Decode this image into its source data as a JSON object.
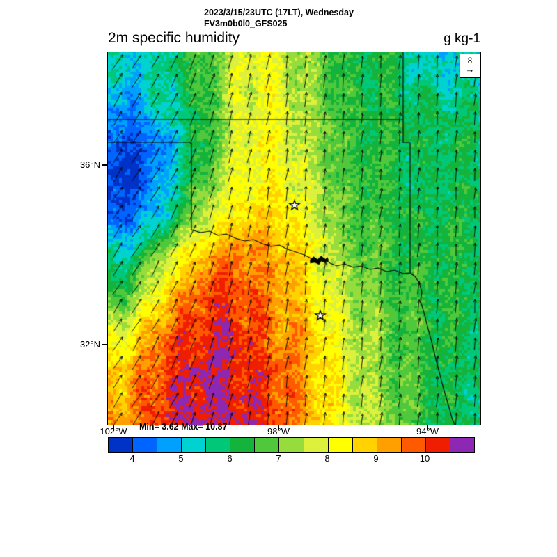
{
  "header": {
    "line1": "2023/3/15/23UTC (17LT), Wednesday",
    "line2": "FV3m0b0l0_GFS025"
  },
  "plot": {
    "variable": "2m specific humidity",
    "units": "g kg-1",
    "minmax": "Min= 3.62 Max= 10.87"
  },
  "axes": {
    "lat_labels": [
      {
        "label": "36°N"
      },
      {
        "label": "32°N"
      }
    ],
    "lon_labels": [
      {
        "label": "102°W"
      },
      {
        "label": "98°W"
      },
      {
        "label": "94°W"
      }
    ]
  },
  "reference_vector": {
    "value": "8"
  },
  "chart_data": {
    "type": "heatmap",
    "title": "2m specific humidity",
    "subtitle1": "2023/3/15/23UTC (17LT), Wednesday",
    "subtitle2": "FV3m0b0l0_GFS025",
    "units": "g kg-1",
    "min": 3.62,
    "max": 10.87,
    "lat_range": [
      30.2,
      38.5
    ],
    "lon_range": [
      -102.1,
      -92.7
    ],
    "lat_ticks": [
      {
        "value": 36,
        "label": "36°N"
      },
      {
        "value": 32,
        "label": "32°N"
      }
    ],
    "lon_ticks": [
      {
        "value": -102,
        "label": "102°W"
      },
      {
        "value": -98,
        "label": "98°W"
      },
      {
        "value": -94,
        "label": "94°W"
      }
    ],
    "levels": [
      3.5,
      4,
      4.5,
      5,
      5.5,
      6,
      6.5,
      7,
      7.5,
      8,
      8.5,
      9,
      9.5,
      10,
      10.5,
      11
    ],
    "palette": [
      "#0032c8",
      "#0064ff",
      "#00a0ff",
      "#00d2d2",
      "#00c878",
      "#14b43c",
      "#50c83c",
      "#96dc3c",
      "#dcf03c",
      "#ffff00",
      "#ffd200",
      "#ffa000",
      "#ff5a00",
      "#f01e00",
      "#8c28b4"
    ],
    "colorbar_tick_values": [
      4,
      5,
      6,
      7,
      8,
      9,
      10
    ],
    "field_grid": {
      "description": "2m specific humidity (g/kg) sampled on a 10x10 grid over the map, rows north to south, columns west to east",
      "values": [
        [
          5.2,
          5.6,
          6.5,
          7.8,
          8.0,
          7.0,
          6.3,
          6.2,
          5.4,
          5.2
        ],
        [
          4.6,
          5.4,
          6.3,
          7.8,
          8.0,
          7.2,
          6.4,
          6.2,
          6.0,
          5.9
        ],
        [
          3.9,
          4.6,
          6.2,
          7.9,
          8.2,
          7.3,
          6.5,
          6.3,
          6.1,
          6.0
        ],
        [
          3.8,
          4.8,
          6.8,
          8.0,
          8.4,
          7.4,
          6.6,
          6.3,
          5.8,
          6.1
        ],
        [
          4.3,
          5.4,
          7.6,
          8.6,
          8.8,
          7.8,
          6.8,
          6.4,
          6.2,
          6.2
        ],
        [
          5.6,
          7.4,
          9.0,
          9.6,
          9.2,
          8.2,
          7.0,
          6.5,
          6.3,
          6.2
        ],
        [
          6.6,
          8.6,
          9.9,
          10.0,
          9.4,
          8.4,
          7.4,
          6.7,
          6.4,
          6.2
        ],
        [
          8.0,
          9.6,
          10.3,
          10.2,
          9.5,
          8.8,
          7.6,
          6.9,
          6.4,
          6.1
        ],
        [
          8.8,
          10.0,
          10.5,
          10.4,
          9.8,
          9.0,
          7.7,
          7.0,
          6.4,
          6.0
        ],
        [
          9.2,
          10.2,
          10.6,
          10.5,
          10.0,
          9.0,
          7.8,
          7.1,
          6.4,
          5.9
        ]
      ]
    },
    "wind": {
      "reference_speed": 8,
      "note": "southerly flow over most of the domain, tilting toward the northeast near the western edge",
      "tilt_deg_east_of_north_by_col": [
        32,
        16,
        8,
        6,
        5
      ],
      "speed_by_col": [
        9,
        8,
        7.5,
        7,
        7
      ]
    },
    "markers": {
      "stars_uv": [
        [
          0.501,
          0.411
        ],
        [
          0.57,
          0.707
        ]
      ],
      "lake_uv": [
        0.565,
        0.561
      ]
    }
  }
}
